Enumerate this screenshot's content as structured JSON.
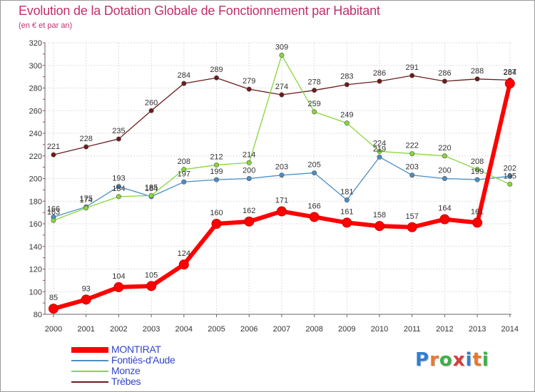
{
  "header": {
    "title": "Evolution de la Dotation Globale de Fonctionnement par Habitant",
    "subtitle": "(en € et par an)"
  },
  "logo": {
    "text": "Proxiti",
    "letter_colors": [
      "#2f7fd6",
      "#e8792a",
      "#3fae49",
      "#d93b3b",
      "#2f7fd6",
      "#e8792a",
      "#3fae49"
    ]
  },
  "chart_data": {
    "type": "line",
    "title": "Evolution de la Dotation Globale de Fonctionnement par Habitant",
    "subtitle": "(en € et par an)",
    "xlabel": "",
    "ylabel": "",
    "categories": [
      "2000",
      "2001",
      "2002",
      "2003",
      "2004",
      "2005",
      "2006",
      "2007",
      "2008",
      "2009",
      "2010",
      "2011",
      "2012",
      "2013",
      "2014"
    ],
    "ylim": [
      80,
      320
    ],
    "yticks": [
      80,
      100,
      120,
      140,
      160,
      180,
      200,
      220,
      240,
      260,
      280,
      300,
      320
    ],
    "grid": true,
    "legend_position": "bottom-left",
    "series": [
      {
        "name": "Trèbes",
        "color": "#6b1b1b",
        "values": [
          221,
          228,
          235,
          260,
          284,
          289,
          279,
          274,
          278,
          283,
          286,
          291,
          286,
          288,
          287
        ]
      },
      {
        "name": "Fontiès-d'Aude",
        "color": "#4a8dc6",
        "values": [
          166,
          175,
          193,
          184,
          197,
          199,
          200,
          203,
          205,
          181,
          219,
          203,
          200,
          199,
          202
        ]
      },
      {
        "name": "Monze",
        "color": "#88d63a",
        "values": [
          163,
          174,
          184,
          185,
          208,
          212,
          214,
          309,
          259,
          249,
          224,
          222,
          220,
          208,
          195
        ]
      },
      {
        "name": "MONTIRAT",
        "color": "#ff0000",
        "values": [
          85,
          93,
          104,
          105,
          124,
          160,
          162,
          171,
          166,
          161,
          158,
          157,
          164,
          161,
          284
        ]
      }
    ],
    "data_labels": {
      "Trèbes": [
        "221",
        "228",
        "235",
        "260",
        "284",
        "289",
        "279",
        "274",
        "278",
        "283",
        "286",
        "291",
        "286",
        "288",
        "287"
      ],
      "Fontiès-d'Aude": [
        "166",
        "175",
        "193",
        "184",
        "197",
        "199",
        "200",
        "203",
        "205",
        "181",
        "219",
        "203",
        "200",
        "199",
        "202"
      ],
      "Monze": [
        "163",
        "174",
        "184",
        "185",
        "208",
        "212",
        "214",
        "309",
        "259",
        "249",
        "224",
        "222",
        "220",
        "208",
        "195"
      ],
      "MONTIRAT": [
        "85",
        "93",
        "104",
        "105",
        "124",
        "160",
        "162",
        "171",
        "166",
        "161",
        "158",
        "157",
        "164",
        "161",
        "284"
      ]
    },
    "legend_order": [
      "MONTIRAT",
      "Fontiès-d'Aude",
      "Monze",
      "Trèbes"
    ]
  }
}
